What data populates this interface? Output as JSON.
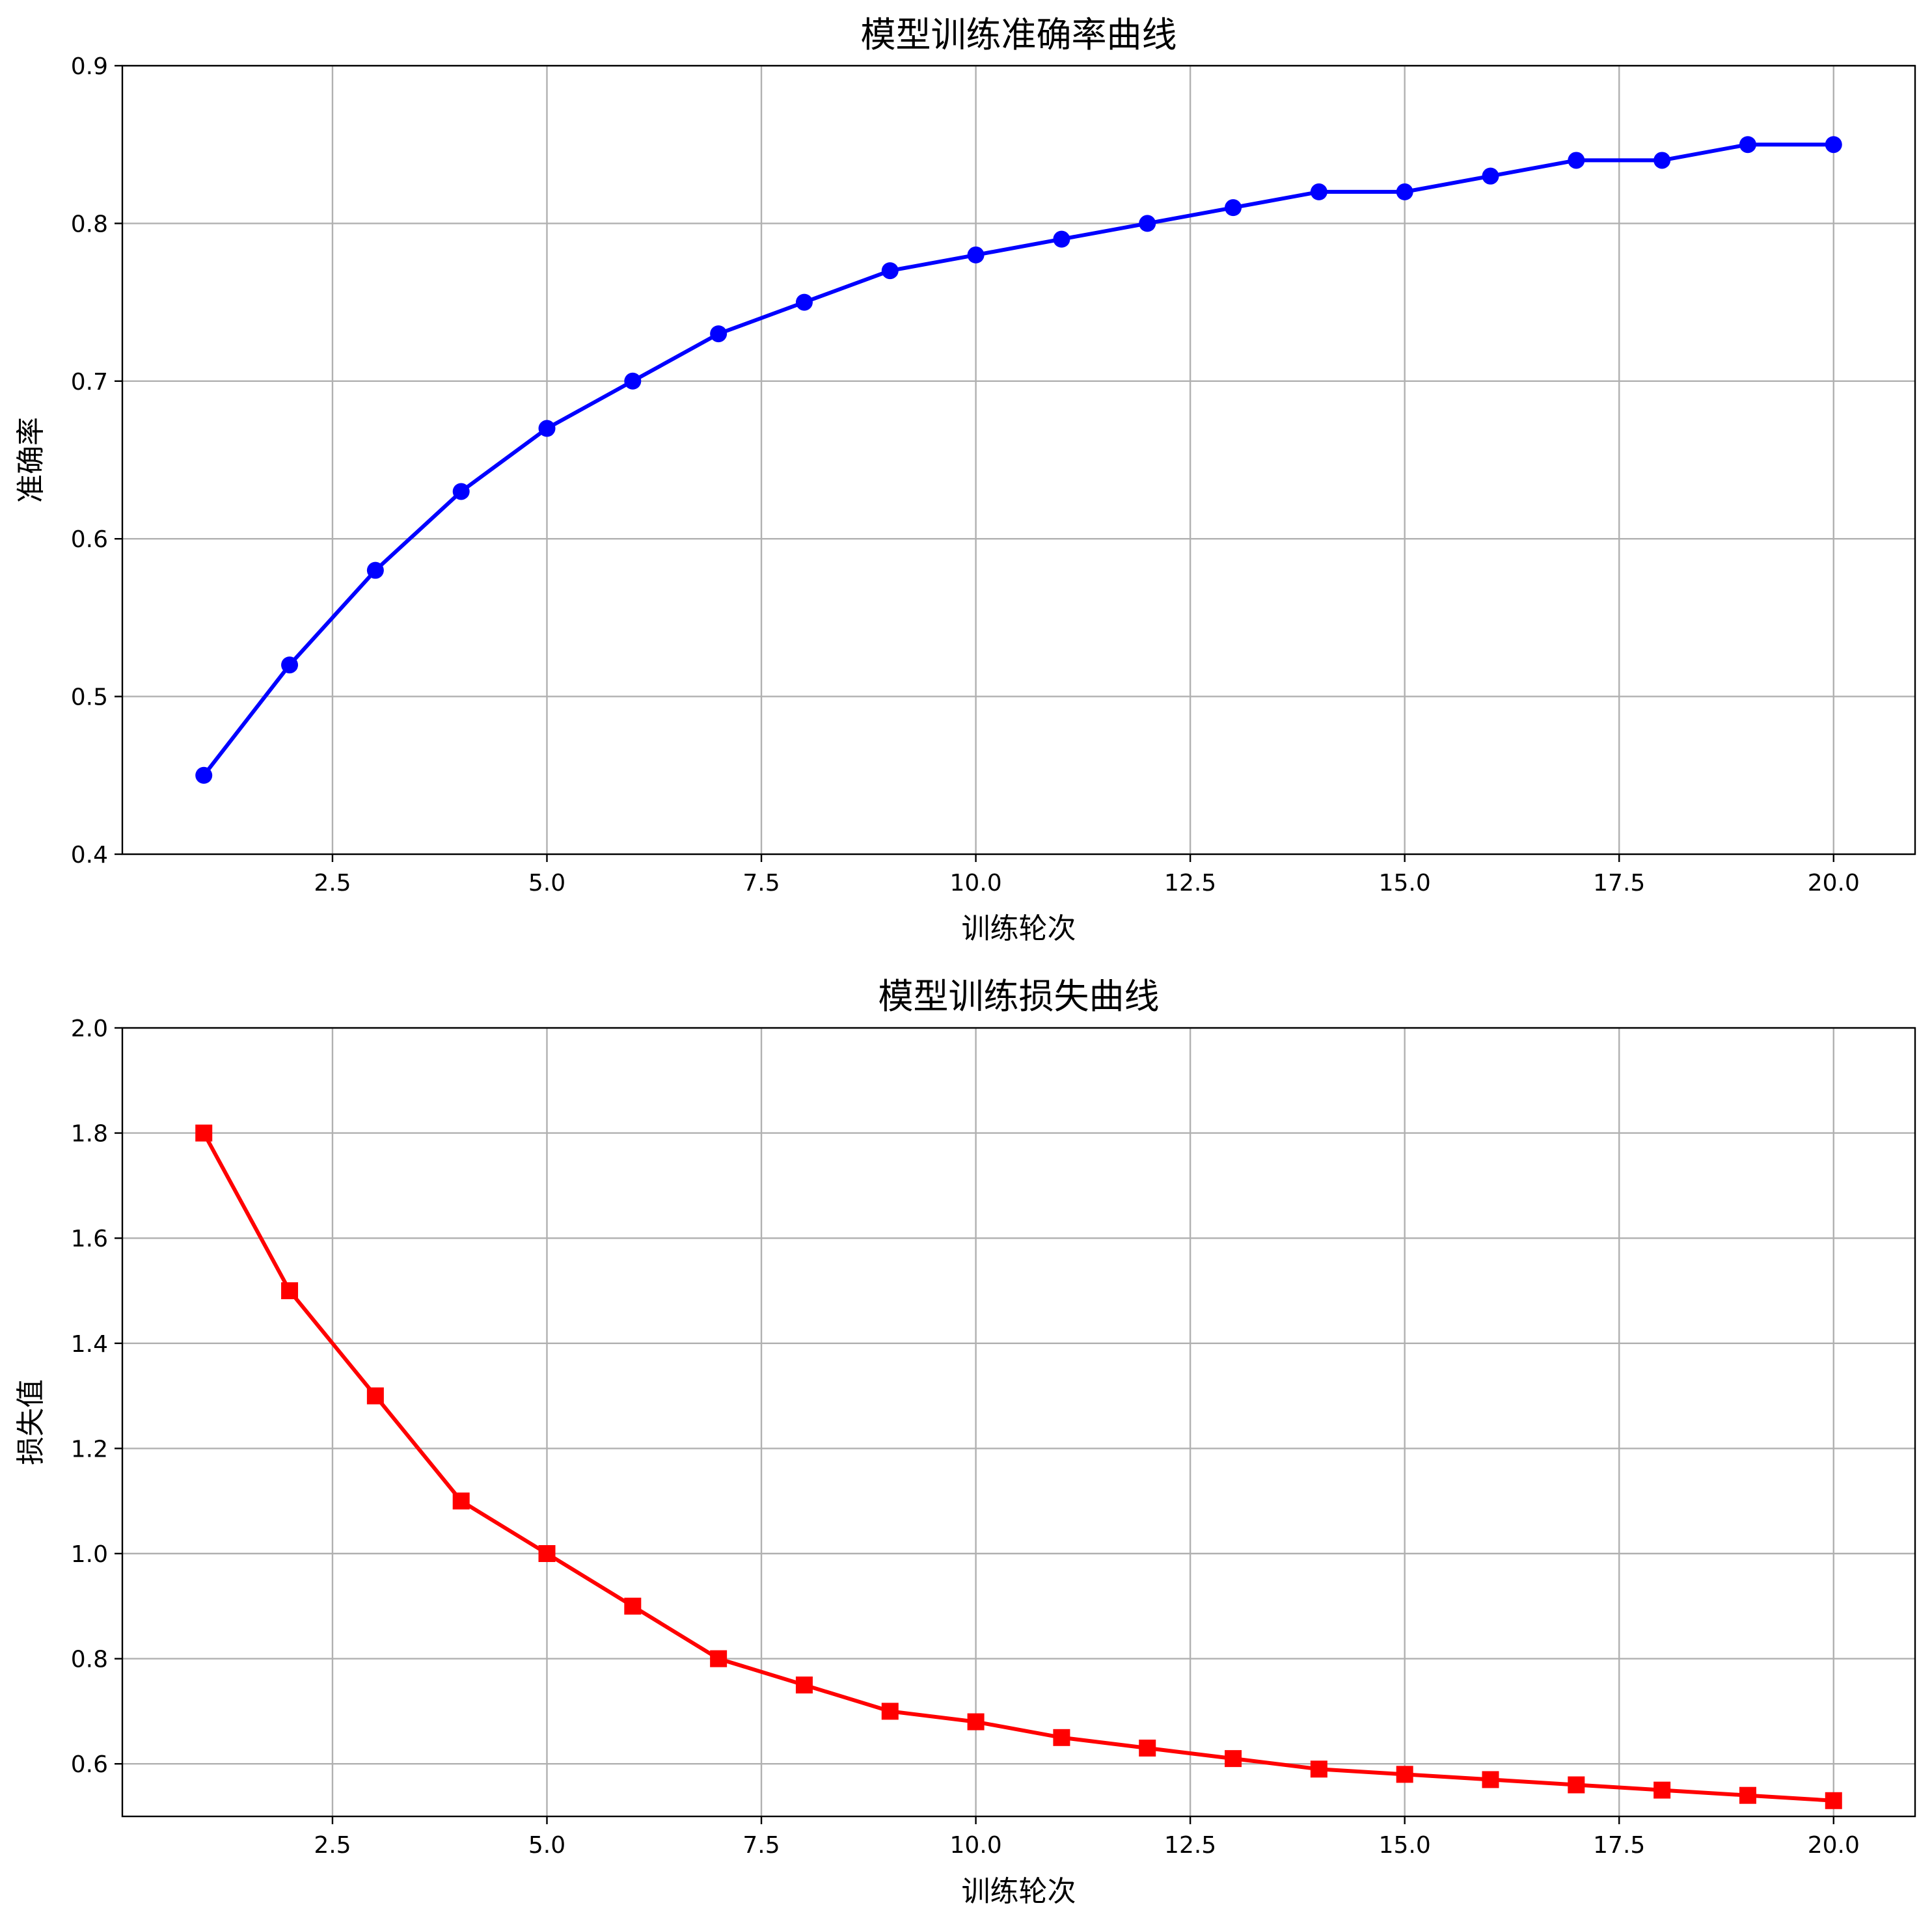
{
  "chart_data": [
    {
      "type": "line",
      "title": "模型训练准确率曲线",
      "xlabel": "训练轮次",
      "ylabel": "准确率",
      "xlim": [
        0.05,
        20.95
      ],
      "ylim": [
        0.4,
        0.9
      ],
      "xticks": [
        2.5,
        5.0,
        7.5,
        10.0,
        12.5,
        15.0,
        17.5,
        20.0
      ],
      "xtick_labels": [
        "2.5",
        "5.0",
        "7.5",
        "10.0",
        "12.5",
        "15.0",
        "17.5",
        "20.0"
      ],
      "yticks": [
        0.4,
        0.5,
        0.6,
        0.7,
        0.8,
        0.9
      ],
      "ytick_labels": [
        "0.4",
        "0.5",
        "0.6",
        "0.7",
        "0.8",
        "0.9"
      ],
      "grid": true,
      "series": [
        {
          "color": "#0000ff",
          "marker": "circle",
          "x": [
            1,
            2,
            3,
            4,
            5,
            6,
            7,
            8,
            9,
            10,
            11,
            12,
            13,
            14,
            15,
            16,
            17,
            18,
            19,
            20
          ],
          "y": [
            0.45,
            0.52,
            0.58,
            0.63,
            0.67,
            0.7,
            0.73,
            0.75,
            0.77,
            0.78,
            0.79,
            0.8,
            0.81,
            0.82,
            0.82,
            0.83,
            0.84,
            0.84,
            0.85,
            0.85
          ]
        }
      ]
    },
    {
      "type": "line",
      "title": "模型训练损失曲线",
      "xlabel": "训练轮次",
      "ylabel": "损失值",
      "xlim": [
        0.05,
        20.95
      ],
      "ylim": [
        0.5,
        2.0
      ],
      "xticks": [
        2.5,
        5.0,
        7.5,
        10.0,
        12.5,
        15.0,
        17.5,
        20.0
      ],
      "xtick_labels": [
        "2.5",
        "5.0",
        "7.5",
        "10.0",
        "12.5",
        "15.0",
        "17.5",
        "20.0"
      ],
      "yticks": [
        0.6,
        0.8,
        1.0,
        1.2,
        1.4,
        1.6,
        1.8,
        2.0
      ],
      "ytick_labels": [
        "0.6",
        "0.8",
        "1.0",
        "1.2",
        "1.4",
        "1.6",
        "1.8",
        "2.0"
      ],
      "grid": true,
      "series": [
        {
          "color": "#ff0000",
          "marker": "square",
          "x": [
            1,
            2,
            3,
            4,
            5,
            6,
            7,
            8,
            9,
            10,
            11,
            12,
            13,
            14,
            15,
            16,
            17,
            18,
            19,
            20
          ],
          "y": [
            1.8,
            1.5,
            1.3,
            1.1,
            1.0,
            0.9,
            0.8,
            0.75,
            0.7,
            0.68,
            0.65,
            0.63,
            0.61,
            0.59,
            0.58,
            0.57,
            0.56,
            0.55,
            0.54,
            0.53
          ]
        }
      ]
    }
  ]
}
